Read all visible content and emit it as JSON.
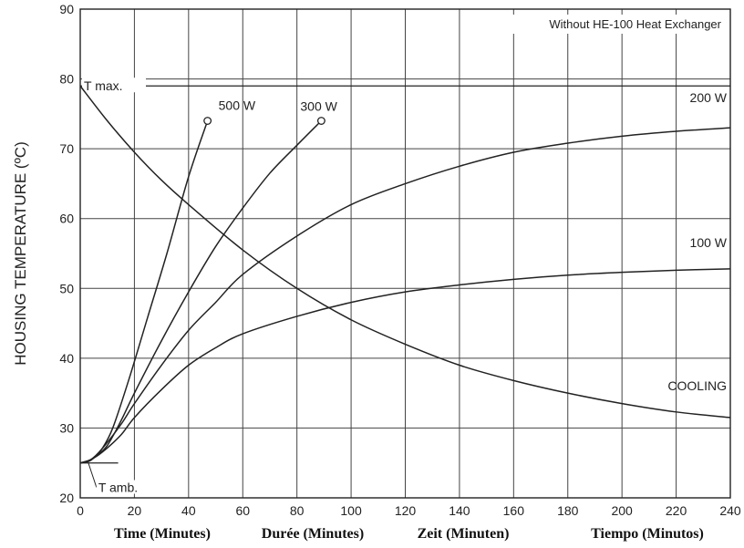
{
  "chart_data": {
    "type": "line",
    "title": "",
    "annotation": "Without HE-100 Heat Exchanger",
    "ylabel": "HOUSING TEMPERATURE (ºC)",
    "xlabels": [
      "Time  (Minutes)",
      "Durée  (Minutes)",
      "Zeit  (Minuten)",
      "Tiempo  (Minutos)"
    ],
    "xlim": [
      0,
      240
    ],
    "ylim": [
      20,
      90
    ],
    "xticks": [
      0,
      20,
      40,
      60,
      80,
      100,
      120,
      140,
      160,
      180,
      200,
      220,
      240
    ],
    "yticks": [
      20,
      30,
      40,
      50,
      60,
      70,
      80,
      90
    ],
    "grid": true,
    "reference_lines": [
      {
        "label": "T max.",
        "y": 79
      },
      {
        "label": "T amb.",
        "y": 25
      }
    ],
    "series": [
      {
        "name": "500 W",
        "x": [
          0,
          3,
          5,
          8,
          12,
          18,
          25,
          32,
          40,
          47
        ],
        "y": [
          25,
          25.2,
          25.7,
          27,
          30,
          37,
          46,
          55,
          66,
          74
        ],
        "end_marker": true
      },
      {
        "name": "300 W",
        "x": [
          0,
          3,
          6,
          10,
          15,
          20,
          30,
          40,
          50,
          60,
          70,
          80,
          89
        ],
        "y": [
          25,
          25.3,
          26,
          27.5,
          31,
          35,
          42.5,
          49.5,
          56,
          61.5,
          66.5,
          70.5,
          74
        ],
        "end_marker": true
      },
      {
        "name": "200 W",
        "x": [
          0,
          4,
          8,
          15,
          20,
          30,
          40,
          50,
          60,
          80,
          100,
          120,
          140,
          160,
          180,
          200,
          220,
          240
        ],
        "y": [
          25,
          25.5,
          27,
          30.5,
          33.5,
          39,
          44,
          48,
          52,
          57.5,
          62,
          65,
          67.5,
          69.5,
          70.8,
          71.8,
          72.5,
          73
        ]
      },
      {
        "name": "100 W",
        "x": [
          0,
          4,
          8,
          15,
          20,
          30,
          40,
          50,
          60,
          80,
          100,
          120,
          140,
          160,
          180,
          200,
          220,
          240
        ],
        "y": [
          25,
          25.5,
          26.5,
          29,
          31.5,
          35.5,
          39,
          41.5,
          43.5,
          46,
          48,
          49.5,
          50.5,
          51.3,
          51.9,
          52.3,
          52.6,
          52.8
        ]
      },
      {
        "name": "COOLING",
        "x": [
          0,
          10,
          20,
          30,
          40,
          60,
          80,
          100,
          120,
          140,
          160,
          180,
          200,
          220,
          240
        ],
        "y": [
          79,
          74,
          69.5,
          65.5,
          62,
          55.5,
          50,
          45.5,
          42,
          39,
          36.8,
          35,
          33.5,
          32.3,
          31.5
        ]
      }
    ]
  }
}
